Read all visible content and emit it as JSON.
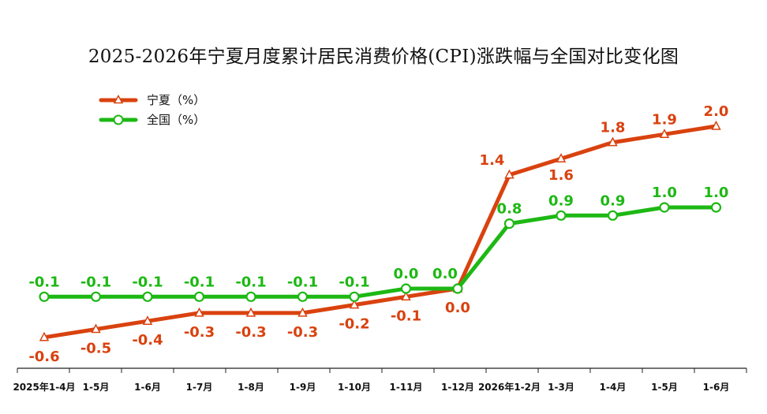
{
  "title": "2025-2026年宁夏月度累计居民消费价格(CPI)涨跌幅与全国对比变化图",
  "colors": {
    "ningxia": "#D9420F",
    "national": "#1DB814",
    "axis": "#222222"
  },
  "chart_data": {
    "type": "line",
    "title": "2025-2026年宁夏月度累计居民消费价格(CPI)涨跌幅与全国对比变化图",
    "xlabel": "",
    "ylabel": "",
    "categories": [
      "2025年1-4月",
      "1-5月",
      "1-6月",
      "1-7月",
      "1-8月",
      "1-9月",
      "1-10月",
      "1-11月",
      "1-12月",
      "2026年1-2月",
      "1-3月",
      "1-4月",
      "1-5月",
      "1-6月"
    ],
    "ylim": [
      -0.8,
      2.2
    ],
    "grid": false,
    "legend_position": "top-left",
    "series": [
      {
        "name": "宁夏（%）",
        "marker": "triangle",
        "labels": [
          "-0.6",
          "-0.5",
          "-0.4",
          "-0.3",
          "-0.3",
          "-0.3",
          "-0.2",
          "-0.1",
          "0.0",
          "1.4",
          "1.6",
          "1.8",
          "1.9",
          "2.0"
        ],
        "values": [
          -0.6,
          -0.5,
          -0.4,
          -0.3,
          -0.3,
          -0.3,
          -0.2,
          -0.1,
          0.0,
          1.4,
          1.6,
          1.8,
          1.9,
          2.0
        ]
      },
      {
        "name": "全国（%）",
        "marker": "circle",
        "labels": [
          "-0.1",
          "-0.1",
          "-0.1",
          "-0.1",
          "-0.1",
          "-0.1",
          "-0.1",
          "0.0",
          "0.0",
          "0.8",
          "0.9",
          "0.9",
          "1.0",
          "1.0"
        ],
        "values": [
          -0.1,
          -0.1,
          -0.1,
          -0.1,
          -0.1,
          -0.1,
          -0.1,
          0.0,
          0.0,
          0.8,
          0.9,
          0.9,
          1.0,
          1.0
        ]
      }
    ]
  }
}
